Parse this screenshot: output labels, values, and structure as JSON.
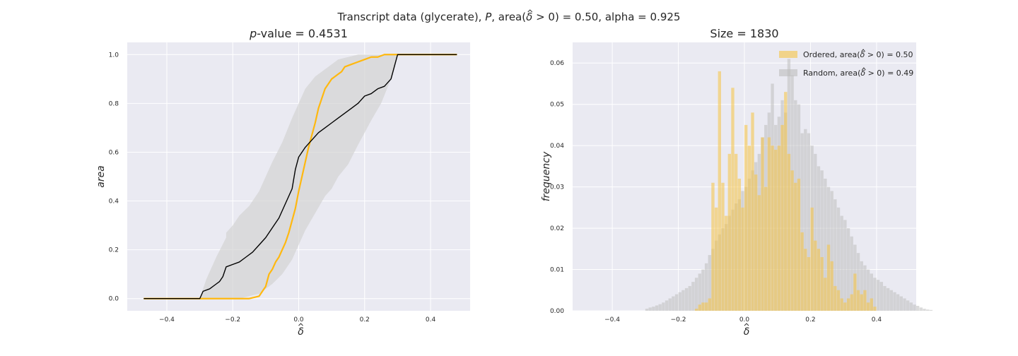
{
  "suptitle": {
    "part1": "Transcript data (glycerate), ",
    "p": "P",
    "part2": ", area(",
    "delta": "δ",
    "part3": " > 0) = 0.50, alpha = 0.925"
  },
  "colors": {
    "axes_bg": "#EAEAF2",
    "grid": "#FFFFFF",
    "ordered": "#FFB80F",
    "random": "#000000",
    "band": "#D3D3D3",
    "ordered_hist": "#F5C342",
    "random_hist": "#BDBDBD"
  },
  "chart_data": [
    {
      "type": "line",
      "title": {
        "italic": "p",
        "rest": "-value = 0.4531"
      },
      "xlabel": "δ",
      "xlabel_hat": true,
      "ylabel": "area",
      "xlim": [
        -0.52,
        0.52
      ],
      "ylim": [
        -0.05,
        1.05
      ],
      "xticks": [
        -0.4,
        -0.2,
        0.0,
        0.2,
        0.4
      ],
      "xtick_labels": [
        "−0.4",
        "−0.2",
        "0.0",
        "0.2",
        "0.4"
      ],
      "yticks": [
        0.0,
        0.2,
        0.4,
        0.6,
        0.8,
        1.0
      ],
      "ytick_labels": [
        "0.0",
        "0.2",
        "0.4",
        "0.6",
        "0.8",
        "1.0"
      ],
      "grid": true,
      "band": {
        "x": [
          -0.47,
          -0.3,
          -0.28,
          -0.25,
          -0.22,
          -0.22,
          -0.2,
          -0.18,
          -0.15,
          -0.12,
          -0.1,
          -0.08,
          -0.05,
          -0.02,
          0.0,
          0.02,
          0.05,
          0.08,
          0.1,
          0.12,
          0.15,
          0.18,
          0.2,
          0.22,
          0.25,
          0.28,
          0.3,
          0.48
        ],
        "upper": [
          0.0,
          0.0,
          0.08,
          0.17,
          0.25,
          0.27,
          0.3,
          0.34,
          0.38,
          0.44,
          0.5,
          0.56,
          0.64,
          0.74,
          0.8,
          0.86,
          0.91,
          0.94,
          0.96,
          0.98,
          0.99,
          1.0,
          1.0,
          1.0,
          1.0,
          1.0,
          1.0,
          1.0
        ],
        "lower": [
          0.0,
          0.0,
          0.0,
          0.0,
          0.0,
          0.0,
          0.0,
          0.0,
          0.01,
          0.02,
          0.04,
          0.06,
          0.1,
          0.16,
          0.22,
          0.28,
          0.35,
          0.42,
          0.45,
          0.5,
          0.55,
          0.63,
          0.68,
          0.73,
          0.8,
          0.9,
          1.0,
          1.0
        ]
      },
      "series": [
        {
          "name": "Ordered",
          "color": "#FFB80F",
          "x": [
            -0.47,
            -0.3,
            -0.2,
            -0.15,
            -0.12,
            -0.1,
            -0.09,
            -0.08,
            -0.07,
            -0.06,
            -0.05,
            -0.04,
            -0.03,
            -0.02,
            -0.01,
            0.0,
            0.01,
            0.02,
            0.03,
            0.04,
            0.05,
            0.06,
            0.07,
            0.08,
            0.09,
            0.1,
            0.11,
            0.12,
            0.13,
            0.14,
            0.16,
            0.18,
            0.2,
            0.22,
            0.24,
            0.26,
            0.28,
            0.3,
            0.48
          ],
          "y": [
            0.0,
            0.0,
            0.0,
            0.0,
            0.01,
            0.05,
            0.1,
            0.12,
            0.15,
            0.17,
            0.2,
            0.23,
            0.27,
            0.32,
            0.37,
            0.44,
            0.5,
            0.56,
            0.62,
            0.67,
            0.72,
            0.78,
            0.82,
            0.86,
            0.88,
            0.9,
            0.91,
            0.92,
            0.93,
            0.95,
            0.96,
            0.97,
            0.98,
            0.99,
            0.99,
            1.0,
            1.0,
            1.0,
            1.0
          ]
        },
        {
          "name": "Random",
          "color": "#000000",
          "x": [
            -0.47,
            -0.3,
            -0.29,
            -0.27,
            -0.25,
            -0.24,
            -0.23,
            -0.22,
            -0.2,
            -0.18,
            -0.16,
            -0.14,
            -0.12,
            -0.1,
            -0.08,
            -0.06,
            -0.04,
            -0.02,
            -0.01,
            0.0,
            0.02,
            0.04,
            0.06,
            0.08,
            0.1,
            0.12,
            0.14,
            0.16,
            0.18,
            0.2,
            0.22,
            0.24,
            0.26,
            0.28,
            0.3,
            0.48
          ],
          "y": [
            0.0,
            0.0,
            0.03,
            0.04,
            0.06,
            0.07,
            0.09,
            0.13,
            0.14,
            0.15,
            0.17,
            0.19,
            0.22,
            0.25,
            0.29,
            0.33,
            0.39,
            0.45,
            0.53,
            0.58,
            0.62,
            0.65,
            0.68,
            0.7,
            0.72,
            0.74,
            0.76,
            0.78,
            0.8,
            0.83,
            0.84,
            0.86,
            0.87,
            0.9,
            1.0,
            1.0
          ]
        }
      ]
    },
    {
      "type": "bar",
      "title": "Size = 1830",
      "xlabel": "δ",
      "xlabel_hat": true,
      "ylabel": "frequency",
      "xlim": [
        -0.52,
        0.52
      ],
      "ylim": [
        0,
        0.065
      ],
      "xticks": [
        -0.4,
        -0.2,
        0.0,
        0.2,
        0.4
      ],
      "xtick_labels": [
        "−0.4",
        "−0.2",
        "0.0",
        "0.2",
        "0.4"
      ],
      "yticks": [
        0.0,
        0.01,
        0.02,
        0.03,
        0.04,
        0.05,
        0.06
      ],
      "ytick_labels": [
        "0.00",
        "0.01",
        "0.02",
        "0.03",
        "0.04",
        "0.05",
        "0.06"
      ],
      "grid": true,
      "legend_position": "top-right",
      "bin_width": 0.01,
      "series": [
        {
          "name_prefix": "Ordered, area(",
          "name_delta": "δ",
          "name_suffix": " > 0) = 0.50",
          "color": "#F5C342",
          "bin_start": -0.15,
          "values": [
            0.0005,
            0.0015,
            0.002,
            0.002,
            0.003,
            0.031,
            0.025,
            0.058,
            0.031,
            0.023,
            0.038,
            0.054,
            0.038,
            0.032,
            0.025,
            0.045,
            0.04,
            0.048,
            0.033,
            0.028,
            0.042,
            0.03,
            0.042,
            0.04,
            0.039,
            0.04,
            0.045,
            0.053,
            0.038,
            0.034,
            0.031,
            0.032,
            0.019,
            0.015,
            0.013,
            0.025,
            0.017,
            0.015,
            0.013,
            0.008,
            0.016,
            0.012,
            0.006,
            0.005,
            0.003,
            0.002,
            0.003,
            0.004,
            0.009,
            0.005,
            0.004,
            0.005,
            0.002,
            0.003,
            0.001
          ]
        },
        {
          "name_prefix": "Random, area(",
          "name_delta": "δ",
          "name_suffix": " > 0) = 0.49",
          "color": "#BDBDBD",
          "bin_start": -0.3,
          "values": [
            0.0005,
            0.0008,
            0.001,
            0.0013,
            0.0016,
            0.002,
            0.0025,
            0.003,
            0.0035,
            0.004,
            0.0045,
            0.005,
            0.0055,
            0.006,
            0.007,
            0.008,
            0.009,
            0.01,
            0.0115,
            0.0135,
            0.015,
            0.017,
            0.0185,
            0.02,
            0.021,
            0.023,
            0.0245,
            0.026,
            0.027,
            0.029,
            0.03,
            0.032,
            0.034,
            0.036,
            0.038,
            0.042,
            0.045,
            0.048,
            0.055,
            0.045,
            0.047,
            0.051,
            0.048,
            0.061,
            0.057,
            0.051,
            0.05,
            0.043,
            0.044,
            0.043,
            0.04,
            0.038,
            0.035,
            0.034,
            0.032,
            0.03,
            0.029,
            0.027,
            0.025,
            0.023,
            0.022,
            0.02,
            0.018,
            0.016,
            0.014,
            0.012,
            0.011,
            0.01,
            0.009,
            0.008,
            0.0075,
            0.007,
            0.006,
            0.0055,
            0.005,
            0.0045,
            0.004,
            0.0035,
            0.003,
            0.0025,
            0.002,
            0.0015,
            0.0012,
            0.0008,
            0.0005,
            0.0003,
            0.0002
          ]
        }
      ]
    }
  ]
}
